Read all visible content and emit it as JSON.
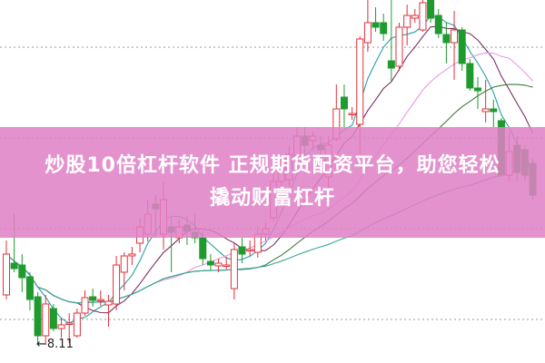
{
  "banner": {
    "line1": "炒股10倍杠杆软件 正规期货配资平台，助您轻松",
    "line2": "撬动财富杠杆"
  },
  "chart_data": {
    "type": "candlestick",
    "title": "",
    "annotations": [
      {
        "text": "8.11",
        "marks": "low",
        "candle_index": 4
      }
    ],
    "grid": "dotted horizontal",
    "colors": {
      "up": "#e0303a",
      "down": "#1f9a2e",
      "ma_short": "#2a9fa8",
      "ma_mid": "#7a2f60",
      "ma_long": "#e59ae0",
      "ma_longer": "#3d7a3d",
      "ma_longest": "#3aa6a0"
    },
    "moving_averages": [
      5,
      10,
      20,
      30,
      60
    ],
    "candles": [
      [
        8.66,
        9.11,
        9.26,
        8.61
      ],
      [
        9.01,
        8.95,
        9.56,
        8.91
      ],
      [
        8.99,
        8.85,
        9.11,
        8.69
      ],
      [
        8.86,
        8.61,
        8.91,
        8.49
      ],
      [
        8.64,
        8.21,
        8.69,
        8.11
      ],
      [
        8.21,
        8.56,
        8.66,
        8.11
      ],
      [
        8.51,
        8.29,
        8.56,
        8.26
      ],
      [
        8.29,
        8.33,
        8.41,
        8.19
      ],
      [
        8.34,
        8.35,
        8.46,
        8.13
      ],
      [
        8.21,
        8.46,
        8.51,
        8.19
      ],
      [
        8.46,
        8.63,
        8.71,
        8.43
      ],
      [
        8.64,
        8.6,
        8.73,
        8.53
      ],
      [
        8.61,
        8.61,
        8.71,
        8.54
      ],
      [
        8.55,
        8.59,
        8.66,
        8.31
      ],
      [
        8.56,
        8.99,
        9.09,
        8.49
      ],
      [
        8.91,
        9.09,
        9.13,
        8.71
      ],
      [
        9.09,
        9.11,
        9.19,
        8.99
      ],
      [
        9.23,
        9.41,
        9.51,
        9.13
      ],
      [
        9.33,
        9.55,
        9.71,
        9.25
      ],
      [
        9.66,
        9.61,
        9.76,
        9.29
      ],
      [
        9.33,
        9.71,
        9.91,
        9.16
      ],
      [
        9.41,
        9.35,
        9.51,
        8.91
      ],
      [
        9.29,
        9.41,
        9.49,
        9.23
      ],
      [
        9.43,
        9.36,
        9.53,
        9.21
      ],
      [
        9.35,
        9.29,
        9.56,
        9.23
      ],
      [
        9.29,
        9.06,
        9.36,
        8.99
      ],
      [
        9.03,
        8.99,
        9.11,
        8.93
      ],
      [
        8.98,
        9.01,
        9.06,
        8.91
      ],
      [
        8.99,
        8.99,
        9.08,
        8.94
      ],
      [
        8.73,
        9.16,
        9.23,
        8.61
      ],
      [
        9.19,
        9.11,
        9.29,
        9.01
      ],
      [
        9.16,
        9.16,
        9.26,
        9.09
      ],
      [
        9.13,
        9.33,
        9.41,
        9.07
      ],
      [
        9.33,
        9.39,
        9.46,
        9.26
      ],
      [
        9.51,
        9.91,
        10.06,
        9.46
      ],
      [
        9.91,
        10.06,
        10.16,
        9.81
      ],
      [
        9.93,
        10.21,
        10.31,
        9.86
      ],
      [
        10.19,
        10.41,
        10.51,
        10.11
      ],
      [
        10.41,
        10.31,
        10.51,
        10.16
      ],
      [
        10.36,
        10.41,
        10.46,
        10.26
      ],
      [
        10.31,
        10.26,
        10.41,
        10.16
      ],
      [
        9.96,
        10.31,
        10.41,
        9.81
      ],
      [
        10.38,
        10.71,
        10.98,
        10.36
      ],
      [
        10.84,
        10.71,
        10.98,
        10.51
      ],
      [
        10.66,
        10.66,
        10.73,
        10.59
      ],
      [
        10.54,
        11.48,
        11.51,
        10.21
      ],
      [
        11.44,
        11.66,
        11.91,
        11.34
      ],
      [
        11.66,
        11.61,
        11.83,
        11.56
      ],
      [
        11.66,
        11.54,
        11.76,
        11.46
      ],
      [
        11.24,
        11.16,
        11.91,
        11.01
      ],
      [
        11.18,
        11.61,
        11.66,
        11.13
      ],
      [
        11.61,
        11.74,
        11.86,
        11.41
      ],
      [
        11.71,
        11.74,
        11.81,
        11.66
      ],
      [
        11.58,
        11.88,
        11.91,
        11.56
      ],
      [
        11.91,
        11.71,
        11.91,
        11.66
      ],
      [
        11.74,
        11.54,
        11.81,
        11.49
      ],
      [
        11.53,
        11.44,
        11.66,
        11.21
      ],
      [
        11.44,
        11.58,
        11.79,
        11.03
      ],
      [
        11.58,
        11.21,
        11.61,
        11.13
      ],
      [
        11.21,
        10.94,
        11.26,
        10.91
      ],
      [
        10.94,
        10.91,
        11.06,
        10.71
      ],
      [
        10.68,
        10.71,
        11.03,
        10.56
      ],
      [
        10.71,
        10.68,
        10.81,
        10.51
      ],
      [
        10.58,
        9.98,
        10.61,
        9.96
      ],
      [
        9.98,
        10.24,
        10.46,
        9.91
      ],
      [
        10.31,
        10.01,
        10.41,
        9.91
      ],
      [
        10.26,
        9.98,
        10.31,
        9.91
      ],
      [
        10.11,
        9.76,
        10.16,
        9.71
      ]
    ]
  }
}
